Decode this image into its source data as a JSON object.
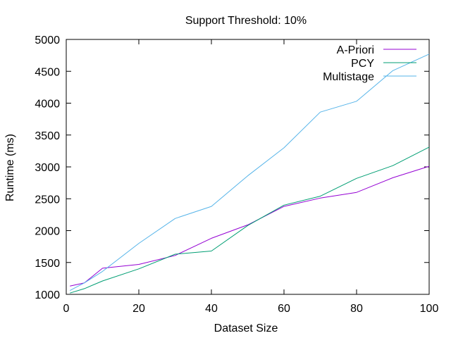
{
  "chart_data": {
    "type": "line",
    "title": "Support Threshold: 10%",
    "xlabel": "Dataset Size",
    "ylabel": "Runtime (ms)",
    "xlim": [
      0,
      100
    ],
    "ylim": [
      1000,
      5000
    ],
    "x_ticks": [
      "0",
      "20",
      "40",
      "60",
      "80",
      "100"
    ],
    "y_ticks": [
      "1000",
      "1500",
      "2000",
      "2500",
      "3000",
      "3500",
      "4000",
      "4500",
      "5000"
    ],
    "grid": false,
    "legend_position": "top-right",
    "series": [
      {
        "name": "A-Priori",
        "color": "#9400d3",
        "x": [
          1,
          5,
          10,
          20,
          30,
          40,
          50,
          60,
          70,
          80,
          90,
          100
        ],
        "values": [
          1130,
          1180,
          1410,
          1470,
          1610,
          1880,
          2090,
          2380,
          2510,
          2600,
          2830,
          3010
        ]
      },
      {
        "name": "PCY",
        "color": "#009e73",
        "x": [
          1,
          5,
          10,
          20,
          30,
          40,
          50,
          60,
          70,
          80,
          90,
          100
        ],
        "values": [
          1020,
          1090,
          1210,
          1400,
          1630,
          1680,
          2080,
          2400,
          2540,
          2820,
          3020,
          3310
        ]
      },
      {
        "name": "Multistage",
        "color": "#56b4e9",
        "x": [
          1,
          5,
          10,
          20,
          30,
          40,
          50,
          60,
          70,
          80,
          90,
          100
        ],
        "values": [
          1060,
          1180,
          1360,
          1800,
          2190,
          2380,
          2860,
          3300,
          3860,
          4030,
          4510,
          4770
        ]
      }
    ]
  }
}
